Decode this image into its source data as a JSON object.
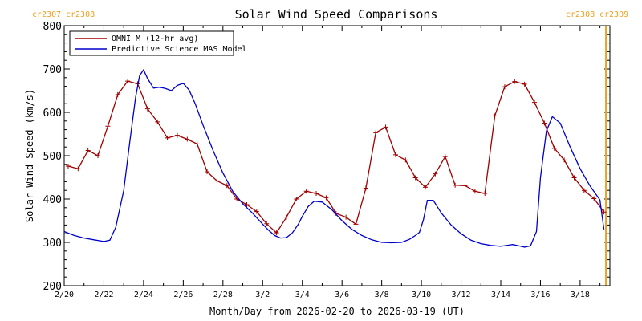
{
  "chart_data": {
    "type": "line",
    "title": "Solar Wind Speed Comparisons",
    "xlabel": "Month/Day from 2026-02-20 to 2026-03-19 (UT)",
    "ylabel": "Solar Wind Speed (km/s)",
    "ylim": [
      200,
      800
    ],
    "xlim": [
      0,
      27.5
    ],
    "yticks": [
      "200",
      "300",
      "400",
      "500",
      "600",
      "700",
      "800"
    ],
    "xticks": [
      {
        "day": 0,
        "label": "2/20"
      },
      {
        "day": 2,
        "label": "2/22"
      },
      {
        "day": 4,
        "label": "2/24"
      },
      {
        "day": 6,
        "label": "2/26"
      },
      {
        "day": 8,
        "label": "2/28"
      },
      {
        "day": 10,
        "label": "3/2"
      },
      {
        "day": 12,
        "label": "3/4"
      },
      {
        "day": 14,
        "label": "3/6"
      },
      {
        "day": 16,
        "label": "3/8"
      },
      {
        "day": 18,
        "label": "3/10"
      },
      {
        "day": 20,
        "label": "3/12"
      },
      {
        "day": 22,
        "label": "3/14"
      },
      {
        "day": 24,
        "label": "3/16"
      },
      {
        "day": 26,
        "label": "3/18"
      }
    ],
    "legend_position": "top-left",
    "carrington_labels": [
      {
        "text": "cr2307",
        "position": "top-left"
      },
      {
        "text": "cr2308",
        "position": "top-left"
      },
      {
        "text": "cr2308",
        "position": "top-right"
      },
      {
        "text": "cr2309",
        "position": "top-right"
      }
    ],
    "carrington_marker_day": 27.3,
    "series": [
      {
        "name": "OMNI_M (12-hr avg)",
        "color": "#a00000",
        "marker": "plus",
        "x": [
          0.2,
          0.7,
          1.2,
          1.7,
          2.2,
          2.7,
          3.2,
          3.7,
          4.2,
          4.7,
          5.2,
          5.7,
          6.2,
          6.7,
          7.2,
          7.7,
          8.2,
          8.7,
          9.2,
          9.7,
          10.2,
          10.7,
          11.2,
          11.7,
          12.2,
          12.7,
          13.2,
          13.7,
          14.2,
          14.7,
          15.2,
          15.7,
          16.2,
          16.7,
          17.2,
          17.7,
          18.2,
          18.7,
          19.2,
          19.7,
          20.2,
          20.7,
          21.2,
          21.7,
          22.2,
          22.7,
          23.2,
          23.7,
          24.2,
          24.7,
          25.2,
          25.7,
          26.2,
          26.7,
          27.2
        ],
        "y": [
          476,
          470,
          512,
          500,
          568,
          641,
          672,
          666,
          608,
          578,
          541,
          547,
          538,
          527,
          463,
          442,
          431,
          400,
          387,
          371,
          343,
          322,
          358,
          400,
          418,
          413,
          403,
          367,
          358,
          342,
          425,
          553,
          566,
          502,
          490,
          449,
          427,
          458,
          498,
          432,
          431,
          418,
          413,
          592,
          659,
          671,
          665,
          623,
          575,
          517,
          490,
          449,
          420,
          401,
          370
        ]
      },
      {
        "name": "Predictive Science MAS Model",
        "color": "#0000cc",
        "x": [
          0,
          0.5,
          1,
          1.5,
          2,
          2.3,
          2.6,
          3,
          3.3,
          3.6,
          3.8,
          4,
          4.2,
          4.5,
          4.8,
          5.1,
          5.4,
          5.7,
          6,
          6.3,
          6.6,
          7,
          7.5,
          8,
          8.5,
          9,
          9.5,
          10,
          10.3,
          10.6,
          10.9,
          11.2,
          11.5,
          11.8,
          12,
          12.3,
          12.6,
          13,
          13.5,
          14,
          14.5,
          15,
          15.5,
          16,
          16.5,
          17,
          17.4,
          17.7,
          17.9,
          18.1,
          18.3,
          18.6,
          19,
          19.5,
          20,
          20.5,
          21,
          21.5,
          22,
          22.3,
          22.6,
          22.9,
          23.2,
          23.5,
          23.8,
          24,
          24.3,
          24.6,
          25,
          25.5,
          26,
          26.5,
          27,
          27.2
        ],
        "y": [
          325,
          316,
          310,
          306,
          302,
          305,
          335,
          420,
          530,
          635,
          685,
          698,
          678,
          656,
          658,
          655,
          650,
          662,
          667,
          651,
          620,
          570,
          512,
          460,
          417,
          389,
          367,
          342,
          328,
          316,
          310,
          311,
          322,
          342,
          360,
          383,
          395,
          393,
          375,
          350,
          330,
          316,
          306,
          300,
          299,
          300,
          307,
          316,
          323,
          352,
          397,
          397,
          368,
          340,
          320,
          305,
          297,
          293,
          291,
          293,
          295,
          292,
          289,
          292,
          325,
          450,
          557,
          590,
          575,
          520,
          470,
          430,
          398,
          330
        ]
      }
    ]
  }
}
